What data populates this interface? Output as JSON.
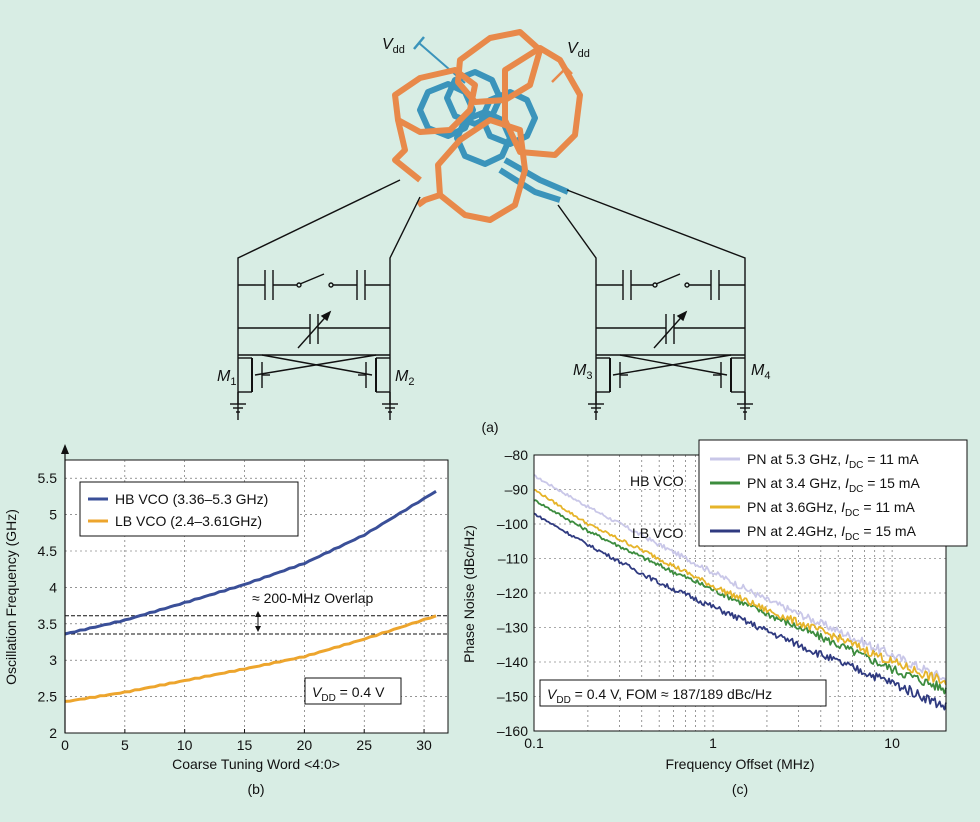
{
  "circuit": {
    "vdd_left": {
      "base": "V",
      "sub": "dd"
    },
    "vdd_right": {
      "base": "V",
      "sub": "dd"
    },
    "transistors": [
      {
        "base": "M",
        "sub": "1"
      },
      {
        "base": "M",
        "sub": "2"
      },
      {
        "base": "M",
        "sub": "3"
      },
      {
        "base": "M",
        "sub": "4"
      }
    ],
    "caption": "(a)",
    "colors": {
      "hb_inductor": "#e8894a",
      "lb_inductor": "#3b94bb"
    }
  },
  "tuning_plot": {
    "caption": "(b)",
    "overlap_label": "≈ 200-MHz Overlap",
    "vdd_box": {
      "base": "V",
      "sub": "DD",
      "rest": " = 0.4 V"
    },
    "chart_data": {
      "type": "line",
      "title": "",
      "xlabel": "Coarse Tuning Word <4:0>",
      "ylabel": "Oscillation Frequency (GHz)",
      "xlim": [
        0,
        32
      ],
      "ylim": [
        2,
        5.75
      ],
      "xticks": [
        0,
        5,
        10,
        15,
        20,
        25,
        30
      ],
      "yticks": [
        2,
        2.5,
        3,
        3.5,
        4,
        4.5,
        5,
        5.5
      ],
      "ytick_labels": [
        "2",
        "2.5",
        "3",
        "3.5",
        "4",
        "4.5",
        "5",
        "5.5"
      ],
      "grid": true,
      "legend_position": "top-left",
      "x": [
        0,
        5,
        10,
        15,
        20,
        25,
        31
      ],
      "series": [
        {
          "name": "HB VCO (3.36–5.3 GHz)",
          "color": "#3a4f98",
          "values": [
            3.36,
            3.55,
            3.79,
            4.04,
            4.33,
            4.72,
            5.32
          ]
        },
        {
          "name": "LB VCO (2.4–3.61GHz)",
          "color": "#eda52d",
          "values": [
            2.43,
            2.56,
            2.72,
            2.88,
            3.05,
            3.29,
            3.61
          ]
        }
      ],
      "overlap_lines_y": [
        3.61,
        3.36
      ]
    }
  },
  "phase_noise_plot": {
    "caption": "(c)",
    "annotation_hb": "HB VCO",
    "annotation_lb": "LB VCO",
    "fom_box": {
      "base": "V",
      "sub": "DD",
      "rest": " = 0.4 V, FOM ≈ 187/189 dBc/Hz"
    },
    "chart_data": {
      "type": "line",
      "title": "",
      "xlabel": "Frequency Offset (MHz)",
      "ylabel": "Phase Noise (dBc/Hz)",
      "xscale": "log",
      "xlim": [
        0.1,
        20
      ],
      "ylim": [
        -160,
        -80
      ],
      "xtick_labels": [
        "0.1",
        "1",
        "10"
      ],
      "xtick_values": [
        0.1,
        1,
        10
      ],
      "yticks": [
        -80,
        -90,
        -100,
        -110,
        -120,
        -130,
        -140,
        -150,
        -160
      ],
      "ytick_labels": [
        "–80",
        "–90",
        "–100",
        "–110",
        "–120",
        "–130",
        "–140",
        "–150",
        "–160"
      ],
      "grid": true,
      "legend_position": "top-right",
      "x": [
        0.1,
        0.2,
        0.5,
        1,
        2,
        5,
        10,
        20
      ],
      "series": [
        {
          "name_prefix": "PN at 5.3 GHz, ",
          "i_base": "I",
          "i_sub": "DC",
          "i_rest": " = 11 mA",
          "color": "#c9c7e8",
          "values": [
            -86,
            -95,
            -106,
            -114,
            -122,
            -131,
            -138,
            -145
          ]
        },
        {
          "name_prefix": "PN at 3.4 GHz, ",
          "i_base": "I",
          "i_sub": "DC",
          "i_rest": " = 15 mA",
          "color": "#3c8c3e",
          "values": [
            -93,
            -102,
            -112,
            -119,
            -126,
            -135,
            -142,
            -148
          ]
        },
        {
          "name_prefix": "PN at 3.6GHz, ",
          "i_base": "I",
          "i_sub": "DC",
          "i_rest": " = 11 mA",
          "color": "#e6b42a",
          "values": [
            -90,
            -100,
            -110,
            -118,
            -125,
            -133,
            -140,
            -146
          ]
        },
        {
          "name_prefix": "PN at 2.4GHz, ",
          "i_base": "I",
          "i_sub": "DC",
          "i_rest": " = 15 mA",
          "color": "#2f3a80",
          "values": [
            -97,
            -106,
            -117,
            -124,
            -131,
            -140,
            -146,
            -153
          ]
        }
      ]
    }
  }
}
